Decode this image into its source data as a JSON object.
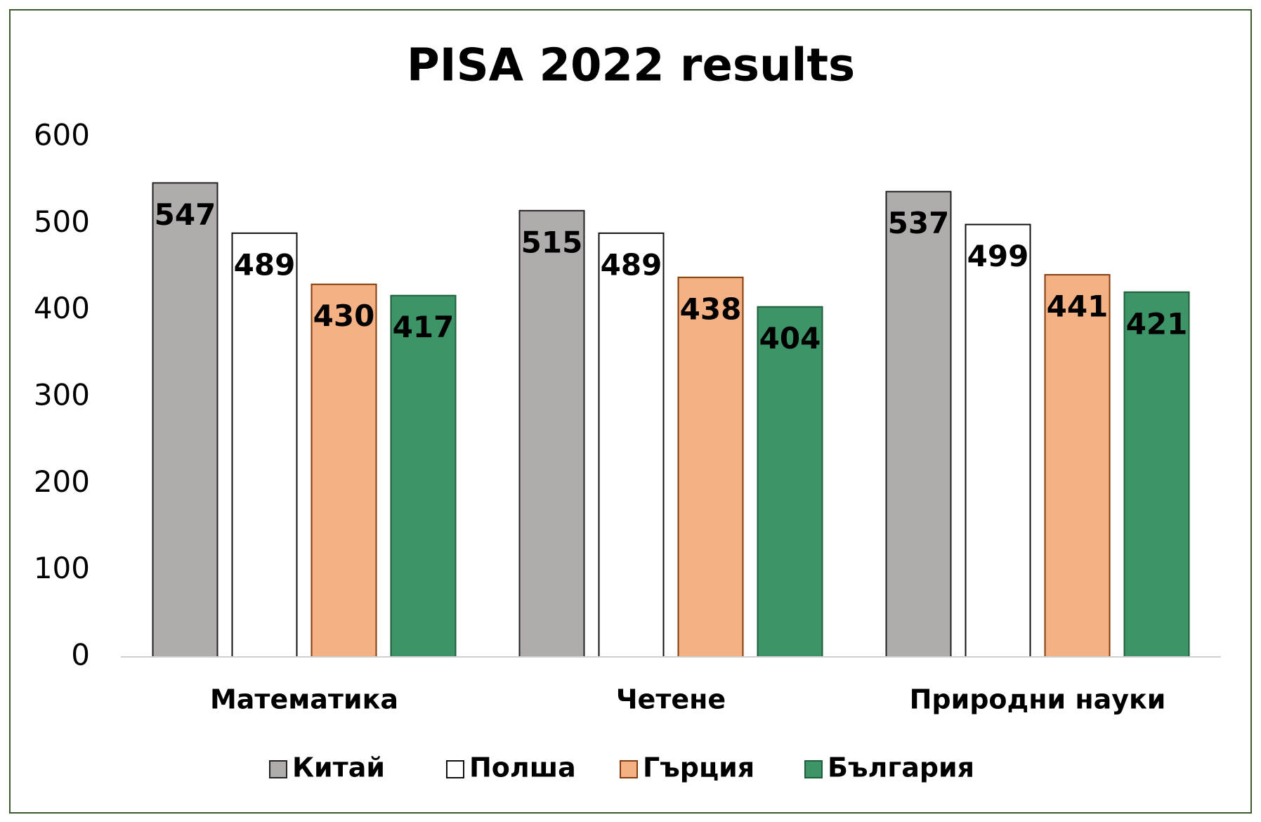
{
  "chart_data": {
    "type": "bar",
    "title": "PISA 2022 results",
    "categories": [
      "Математика",
      "Четене",
      "Природни науки"
    ],
    "series": [
      {
        "name": "Китай",
        "color": "#b0acab",
        "values": [
          547,
          515,
          537
        ]
      },
      {
        "name": "Полша",
        "color": "#ffffff",
        "values": [
          489,
          489,
          499
        ]
      },
      {
        "name": "Гърция",
        "color": "#f4b183",
        "values": [
          430,
          438,
          441
        ]
      },
      {
        "name": "България",
        "color": "#3c9467",
        "values": [
          417,
          404,
          421
        ]
      }
    ],
    "ylim": [
      0,
      600
    ],
    "yticks": [
      0,
      100,
      200,
      300,
      400,
      500,
      600
    ],
    "grid": false,
    "legend": "bottom"
  }
}
